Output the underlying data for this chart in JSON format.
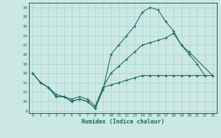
{
  "background_color": "#cce8e5",
  "grid_color": "#a8d8d4",
  "line_color": "#1a6b5e",
  "xlabel": "Humidex (Indice chaleur)",
  "x_ticks": [
    0,
    1,
    2,
    3,
    4,
    5,
    6,
    7,
    8,
    9,
    10,
    11,
    12,
    13,
    14,
    15,
    16,
    17,
    18,
    19,
    20,
    21,
    22,
    23
  ],
  "y_ticks": [
    8,
    10,
    12,
    14,
    16,
    18,
    20,
    22,
    24,
    26,
    28,
    30
  ],
  "ylim": [
    7.5,
    31.0
  ],
  "xlim": [
    -0.5,
    23.5
  ],
  "line_high_x": [
    0,
    1,
    2,
    3,
    4,
    5,
    6,
    7,
    8,
    9,
    10,
    11,
    12,
    13,
    14,
    15,
    16,
    17,
    18,
    19,
    20,
    21,
    22
  ],
  "line_high_y": [
    16,
    14,
    13,
    11,
    11,
    10,
    10.5,
    10,
    8.5,
    12.5,
    20,
    22,
    24,
    26,
    29,
    30,
    29.5,
    27,
    25,
    22,
    20,
    18,
    15.5
  ],
  "line_mid_x": [
    0,
    1,
    2,
    3,
    4,
    5,
    6,
    7,
    8,
    9,
    10,
    11,
    12,
    13,
    14,
    15,
    16,
    17,
    18,
    19,
    20,
    23
  ],
  "line_mid_y": [
    16,
    14,
    13,
    11,
    11,
    10,
    10.5,
    10,
    8.5,
    13,
    16,
    17.5,
    19,
    20.5,
    22,
    22.5,
    23,
    23.5,
    24.5,
    22,
    20.5,
    15.5
  ],
  "line_low_x": [
    0,
    1,
    2,
    3,
    4,
    5,
    6,
    7,
    8,
    9,
    10,
    11,
    12,
    13,
    14,
    15,
    16,
    17,
    18,
    19,
    20,
    21,
    22,
    23
  ],
  "line_low_y": [
    16,
    14,
    13,
    11.5,
    11,
    10.5,
    11,
    10.5,
    9,
    13,
    13.5,
    14,
    14.5,
    15,
    15.5,
    15.5,
    15.5,
    15.5,
    15.5,
    15.5,
    15.5,
    15.5,
    15.5,
    15.5
  ],
  "figsize": [
    3.2,
    2.0
  ],
  "dpi": 100
}
